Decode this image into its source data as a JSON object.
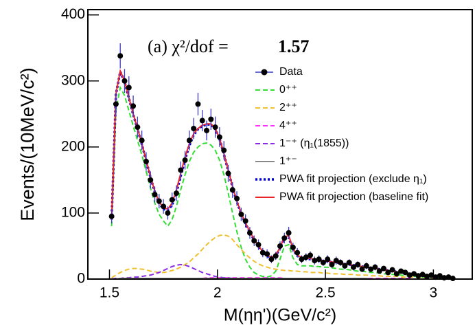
{
  "chart_data": {
    "type": "line",
    "annotation": "(a) χ²/dof =",
    "chi2_dof": 1.57,
    "x_label": "M(ηη')(GeV/c²)",
    "y_label": "Events/(10MeV/c²)",
    "xlim": [
      1.4,
      3.18
    ],
    "ylim": [
      0,
      408
    ],
    "xticks": [
      1.5,
      2,
      2.5,
      3
    ],
    "yticks": [
      0,
      100,
      200,
      300,
      400
    ],
    "x": [
      1.51,
      1.53,
      1.55,
      1.57,
      1.59,
      1.61,
      1.63,
      1.65,
      1.67,
      1.69,
      1.71,
      1.73,
      1.75,
      1.77,
      1.79,
      1.81,
      1.83,
      1.85,
      1.87,
      1.89,
      1.91,
      1.93,
      1.95,
      1.97,
      1.99,
      2.01,
      2.03,
      2.05,
      2.07,
      2.09,
      2.11,
      2.13,
      2.15,
      2.17,
      2.19,
      2.21,
      2.23,
      2.25,
      2.27,
      2.29,
      2.31,
      2.33,
      2.35,
      2.37,
      2.39,
      2.41,
      2.43,
      2.45,
      2.47,
      2.49,
      2.51,
      2.53,
      2.55,
      2.57,
      2.59,
      2.61,
      2.63,
      2.65,
      2.67,
      2.69,
      2.71,
      2.73,
      2.75,
      2.77,
      2.79,
      2.81,
      2.83,
      2.85,
      2.87,
      2.89,
      2.91,
      2.93,
      2.95,
      2.97,
      2.99,
      3.01,
      3.03,
      3.05,
      3.07,
      3.09
    ],
    "series": [
      {
        "name": "Data",
        "color": "#1a1a60",
        "style": "points",
        "values": [
          95,
          265,
          338,
          300,
          290,
          262,
          230,
          210,
          178,
          150,
          128,
          118,
          110,
          100,
          120,
          130,
          165,
          180,
          210,
          228,
          265,
          240,
          225,
          242,
          230,
          215,
          195,
          160,
          135,
          122,
          98,
          88,
          70,
          58,
          52,
          40,
          38,
          30,
          35,
          50,
          62,
          70,
          48,
          40,
          30,
          33,
          36,
          28,
          30,
          25,
          30,
          22,
          28,
          25,
          20,
          25,
          18,
          22,
          15,
          20,
          15,
          18,
          12,
          16,
          10,
          14,
          8,
          12,
          10,
          6,
          8,
          5,
          7,
          4,
          6,
          3,
          5,
          2,
          3,
          1
        ],
        "errors": [
          11,
          17,
          19,
          18,
          17,
          16,
          16,
          15,
          14,
          13,
          12,
          11,
          11,
          10,
          11,
          12,
          13,
          14,
          15,
          16,
          17,
          16,
          15,
          16,
          16,
          15,
          14,
          13,
          12,
          11,
          10,
          10,
          9,
          8,
          8,
          7,
          7,
          6,
          6,
          7,
          8,
          9,
          7,
          7,
          6,
          6,
          6,
          6,
          6,
          5,
          6,
          5,
          6,
          5,
          5,
          5,
          5,
          5,
          4,
          5,
          4,
          5,
          4,
          4,
          4,
          4,
          3,
          4,
          3,
          3,
          3,
          3,
          3,
          2,
          3,
          2,
          3,
          2,
          2,
          1
        ]
      },
      {
        "name": "0⁺⁺",
        "color": "#33dd33",
        "style": "dashed",
        "values": [
          80,
          255,
          290,
          278,
          255,
          232,
          210,
          188,
          163,
          138,
          115,
          98,
          88,
          80,
          90,
          110,
          135,
          158,
          178,
          192,
          200,
          205,
          206,
          203,
          195,
          180,
          158,
          130,
          100,
          72,
          48,
          30,
          18,
          10,
          6,
          4,
          3,
          5,
          12,
          30,
          50,
          52,
          32,
          22,
          20,
          20,
          20,
          19,
          19,
          18,
          18,
          17,
          16,
          15,
          15,
          14,
          13,
          12,
          12,
          11,
          10,
          10,
          9,
          8,
          8,
          7,
          7,
          6,
          5,
          5,
          4,
          4,
          3,
          3,
          3,
          2,
          2,
          2,
          1,
          1
        ]
      },
      {
        "name": "2⁺⁺",
        "color": "#f0c030",
        "style": "dashed",
        "values": [
          2,
          6,
          10,
          13,
          15,
          16,
          16,
          15,
          14,
          12,
          11,
          10,
          10,
          11,
          13,
          15,
          18,
          22,
          26,
          32,
          38,
          45,
          52,
          58,
          63,
          66,
          67,
          65,
          60,
          52,
          45,
          38,
          32,
          27,
          23,
          20,
          18,
          16,
          15,
          14,
          13,
          13,
          12,
          12,
          11,
          11,
          10,
          10,
          10,
          9,
          9,
          8,
          8,
          8,
          7,
          7,
          7,
          6,
          6,
          6,
          5,
          5,
          5,
          4,
          4,
          4,
          4,
          3,
          3,
          3,
          3,
          2,
          2,
          2,
          2,
          2,
          1,
          1,
          1,
          1
        ]
      },
      {
        "name": "4⁺⁺",
        "color": "#ff33ff",
        "style": "dashed",
        "values": [
          0,
          1,
          1,
          1,
          1,
          1,
          1,
          1,
          1,
          1,
          1,
          1,
          1,
          1,
          1,
          1,
          1,
          1,
          1,
          1,
          1,
          1,
          2,
          2,
          2,
          2,
          2,
          2,
          2,
          2,
          2,
          2,
          2,
          2,
          2,
          2,
          2,
          2,
          2,
          2,
          1,
          1,
          1,
          1,
          1,
          1,
          1,
          1,
          1,
          1,
          1,
          1,
          1,
          1,
          1,
          1,
          1,
          1,
          1,
          1,
          1,
          1,
          1,
          1,
          1,
          1,
          1,
          1,
          1,
          1,
          0,
          0,
          0,
          0,
          0,
          0,
          0,
          0,
          0,
          0
        ]
      },
      {
        "name": "1⁻⁺ (η₁(1855))",
        "color": "#8a2be2",
        "style": "dashed",
        "values": [
          0,
          1,
          1,
          2,
          2,
          3,
          3,
          4,
          5,
          6,
          8,
          10,
          13,
          16,
          19,
          21,
          22,
          21,
          19,
          16,
          13,
          10,
          8,
          6,
          4,
          3,
          2,
          2,
          1,
          1,
          0,
          0,
          0,
          0,
          0,
          0,
          0,
          0,
          0,
          0,
          0,
          0,
          0,
          0,
          0,
          0,
          0,
          0,
          0,
          0,
          0,
          0,
          0,
          0,
          0,
          0,
          0,
          0,
          0,
          0,
          0,
          0,
          0,
          0,
          0,
          0,
          0,
          0,
          0,
          0,
          0,
          0,
          0,
          0,
          0,
          0,
          0,
          0,
          0,
          0
        ]
      },
      {
        "name": "1⁺⁻",
        "color": "#888888",
        "style": "solid",
        "values": [
          0,
          0,
          1,
          1,
          1,
          1,
          1,
          1,
          1,
          1,
          1,
          1,
          1,
          1,
          1,
          1,
          1,
          1,
          1,
          1,
          1,
          1,
          1,
          1,
          1,
          1,
          1,
          1,
          1,
          1,
          1,
          1,
          1,
          1,
          1,
          1,
          1,
          1,
          1,
          1,
          1,
          1,
          1,
          1,
          1,
          1,
          1,
          1,
          1,
          1,
          1,
          1,
          1,
          1,
          1,
          1,
          1,
          1,
          1,
          1,
          0,
          0,
          0,
          0,
          0,
          0,
          0,
          0,
          0,
          0,
          0,
          0,
          0,
          0,
          0,
          0,
          0,
          0,
          0,
          0
        ]
      },
      {
        "name": "PWA fit projection (exclude η₁)",
        "color": "#0000dd",
        "style": "dotted",
        "values": [
          90,
          280,
          314,
          299,
          274,
          249,
          227,
          204,
          179,
          154,
          132,
          115,
          106,
          104,
          112,
          131,
          156,
          181,
          202,
          218,
          227,
          232,
          234,
          234,
          227,
          212,
          189,
          164,
          139,
          117,
          99,
          84,
          71,
          59,
          49,
          41,
          35,
          32,
          35,
          47,
          62,
          63,
          45,
          35,
          32,
          31,
          30,
          29,
          28,
          27,
          27,
          26,
          25,
          24,
          23,
          22,
          21,
          20,
          19,
          18,
          17,
          16,
          15,
          14,
          13,
          12,
          11,
          10,
          9,
          8,
          7,
          6,
          5,
          5,
          4,
          4,
          3,
          3,
          2,
          2
        ]
      },
      {
        "name": "PWA fit projection (baseline fit)",
        "color": "#e8262a",
        "style": "solid",
        "values": [
          90,
          280,
          315,
          300,
          275,
          250,
          228,
          205,
          180,
          155,
          133,
          117,
          108,
          106,
          115,
          135,
          160,
          185,
          205,
          220,
          228,
          233,
          235,
          235,
          228,
          213,
          190,
          165,
          140,
          118,
          100,
          85,
          72,
          60,
          50,
          42,
          36,
          33,
          36,
          48,
          64,
          66,
          46,
          36,
          33,
          32,
          31,
          30,
          29,
          28,
          27,
          26,
          25,
          24,
          23,
          22,
          21,
          20,
          19,
          18,
          17,
          16,
          15,
          14,
          13,
          12,
          11,
          10,
          9,
          8,
          7,
          6,
          5,
          5,
          4,
          4,
          3,
          3,
          2,
          2
        ]
      }
    ]
  }
}
